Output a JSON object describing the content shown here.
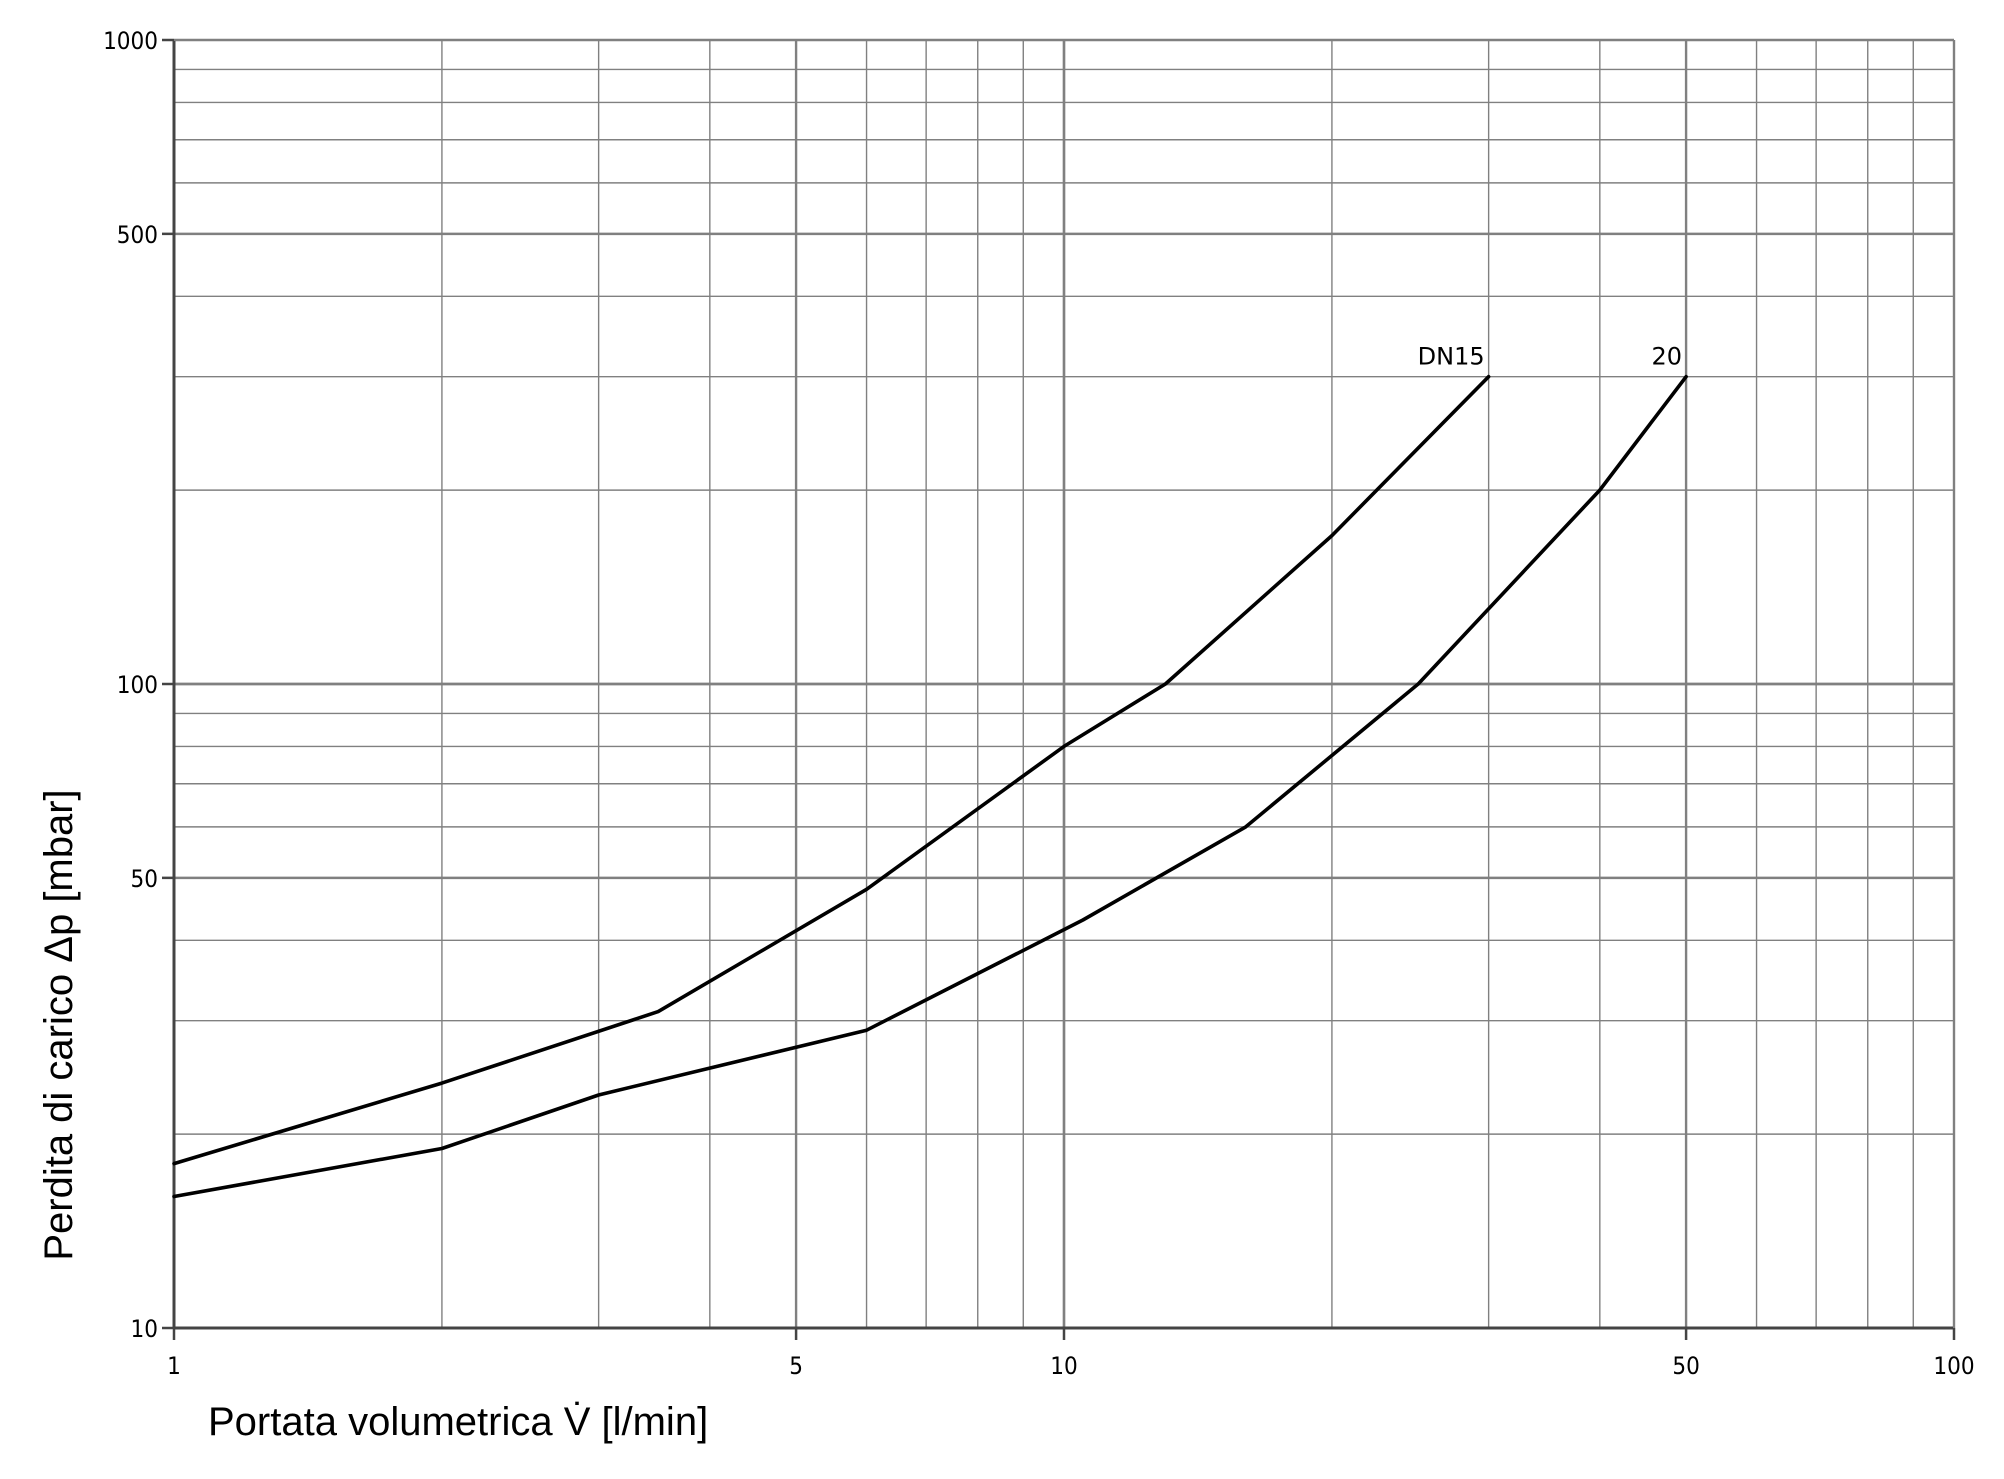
{
  "chart_data": {
    "type": "line",
    "title": "",
    "xlabel": "Portata volumetrica V̇ [l/min]",
    "ylabel": "Perdita di carico Δp [mbar]",
    "x_scale": "log",
    "y_scale": "log",
    "xlim": [
      1,
      100
    ],
    "ylim": [
      10,
      1000
    ],
    "x_ticks": [
      {
        "value": 1,
        "label": "1"
      },
      {
        "value": 5,
        "label": "5"
      },
      {
        "value": 10,
        "label": "10"
      },
      {
        "value": 50,
        "label": "50"
      },
      {
        "value": 100,
        "label": "100"
      }
    ],
    "y_ticks": [
      {
        "value": 10,
        "label": "10"
      },
      {
        "value": 50,
        "label": "50"
      },
      {
        "value": 100,
        "label": "100"
      },
      {
        "value": 500,
        "label": "500"
      },
      {
        "value": 1000,
        "label": "1000"
      }
    ],
    "grid": true,
    "legend": "none",
    "line_color": "#000000",
    "grid_color": "#808080",
    "series": [
      {
        "name": "DN15",
        "x": [
          1,
          2,
          3.5,
          6,
          10,
          13,
          20,
          30
        ],
        "y": [
          18,
          24,
          31,
          48,
          80,
          100,
          170,
          300
        ]
      },
      {
        "name": "20",
        "x": [
          1,
          2,
          3,
          6,
          10.5,
          16,
          25,
          40,
          50
        ],
        "y": [
          16,
          19,
          23,
          29,
          43,
          60,
          100,
          200,
          300
        ]
      }
    ]
  }
}
